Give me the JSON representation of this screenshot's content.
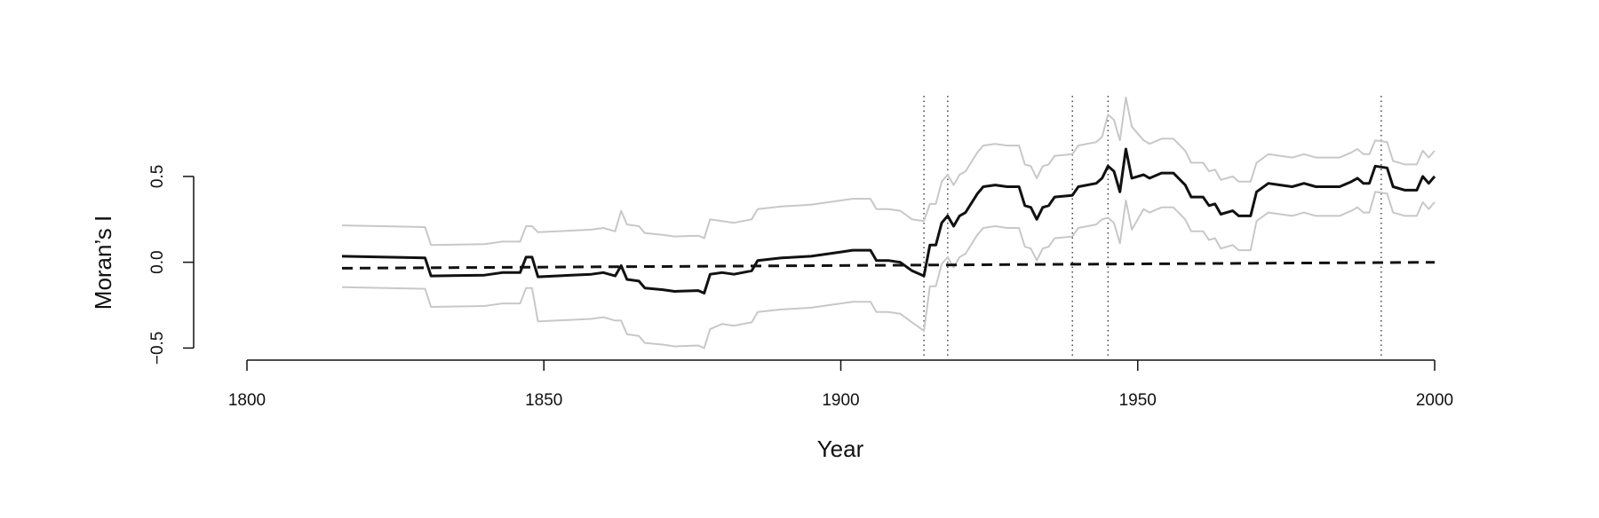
{
  "chart_data": {
    "type": "line",
    "x_label": "Year",
    "y_label": "Moran’s I",
    "xlim": [
      1800,
      2000
    ],
    "xticks": [
      1800,
      1850,
      1900,
      1950,
      2000
    ],
    "ylim": [
      -0.56,
      0.97
    ],
    "yticks": [
      {
        "value": -0.5,
        "label": "−0.5"
      },
      {
        "value": 0,
        "label": "0.0"
      },
      0.5
    ],
    "x": [
      1816,
      1830,
      1831,
      1840,
      1843,
      1846,
      1847,
      1848,
      1849,
      1858,
      1860,
      1862,
      1863,
      1864,
      1866,
      1867,
      1870,
      1872,
      1876,
      1877,
      1878,
      1880,
      1882,
      1885,
      1886,
      1890,
      1895,
      1900,
      1902,
      1905,
      1906,
      1908,
      1910,
      1912,
      1914,
      1915,
      1916,
      1917,
      1918,
      1919,
      1920,
      1921,
      1923,
      1924,
      1926,
      1928,
      1930,
      1931,
      1932,
      1933,
      1934,
      1935,
      1936,
      1939,
      1940,
      1943,
      1944,
      1945,
      1946,
      1947,
      1948,
      1949,
      1951,
      1952,
      1954,
      1956,
      1958,
      1959,
      1961,
      1962,
      1963,
      1964,
      1966,
      1967,
      1969,
      1970,
      1972,
      1974,
      1976,
      1978,
      1980,
      1984,
      1986,
      1987,
      1988,
      1989,
      1990,
      1992,
      1993,
      1995,
      1997,
      1998,
      1999,
      2000
    ],
    "series": [
      {
        "color": "#c8c8c8",
        "width": 2,
        "values": [
          0.215,
          0.205,
          0.1,
          0.105,
          0.12,
          0.12,
          0.21,
          0.21,
          0.175,
          0.19,
          0.2,
          0.18,
          0.3,
          0.22,
          0.21,
          0.17,
          0.16,
          0.15,
          0.155,
          0.14,
          0.25,
          0.24,
          0.23,
          0.25,
          0.31,
          0.325,
          0.335,
          0.36,
          0.37,
          0.37,
          0.31,
          0.31,
          0.3,
          0.25,
          0.24,
          0.34,
          0.34,
          0.47,
          0.51,
          0.45,
          0.51,
          0.53,
          0.64,
          0.68,
          0.69,
          0.68,
          0.68,
          0.57,
          0.56,
          0.49,
          0.56,
          0.57,
          0.62,
          0.63,
          0.68,
          0.7,
          0.73,
          0.86,
          0.83,
          0.71,
          0.96,
          0.79,
          0.71,
          0.69,
          0.72,
          0.72,
          0.65,
          0.58,
          0.58,
          0.53,
          0.54,
          0.48,
          0.5,
          0.47,
          0.47,
          0.58,
          0.63,
          0.62,
          0.61,
          0.63,
          0.61,
          0.61,
          0.64,
          0.66,
          0.63,
          0.63,
          0.71,
          0.7,
          0.59,
          0.57,
          0.57,
          0.65,
          0.61,
          0.65
        ]
      },
      {
        "color": "#c8c8c8",
        "width": 2,
        "values": [
          -0.145,
          -0.155,
          -0.26,
          -0.255,
          -0.24,
          -0.24,
          -0.15,
          -0.15,
          -0.345,
          -0.33,
          -0.32,
          -0.34,
          -0.34,
          -0.42,
          -0.43,
          -0.47,
          -0.48,
          -0.49,
          -0.485,
          -0.5,
          -0.39,
          -0.36,
          -0.37,
          -0.35,
          -0.29,
          -0.275,
          -0.265,
          -0.24,
          -0.23,
          -0.23,
          -0.29,
          -0.29,
          -0.3,
          -0.35,
          -0.4,
          -0.14,
          -0.14,
          -0.01,
          0.03,
          -0.03,
          0.03,
          0.05,
          0.16,
          0.2,
          0.21,
          0.2,
          0.2,
          0.09,
          0.08,
          0.01,
          0.08,
          0.09,
          0.14,
          0.15,
          0.2,
          0.22,
          0.25,
          0.26,
          0.23,
          0.11,
          0.36,
          0.19,
          0.31,
          0.29,
          0.32,
          0.32,
          0.25,
          0.18,
          0.18,
          0.13,
          0.14,
          0.08,
          0.1,
          0.07,
          0.07,
          0.24,
          0.29,
          0.28,
          0.27,
          0.29,
          0.27,
          0.27,
          0.3,
          0.32,
          0.29,
          0.29,
          0.41,
          0.4,
          0.29,
          0.27,
          0.27,
          0.35,
          0.31,
          0.35
        ]
      },
      {
        "color": "#111111",
        "width": 3,
        "values": [
          0.035,
          0.025,
          -0.08,
          -0.075,
          -0.06,
          -0.06,
          0.03,
          0.03,
          -0.085,
          -0.07,
          -0.06,
          -0.08,
          -0.02,
          -0.1,
          -0.11,
          -0.15,
          -0.16,
          -0.17,
          -0.165,
          -0.18,
          -0.07,
          -0.06,
          -0.07,
          -0.05,
          0.01,
          0.025,
          0.035,
          0.06,
          0.07,
          0.07,
          0.01,
          0.01,
          0,
          -0.05,
          -0.08,
          0.1,
          0.1,
          0.23,
          0.27,
          0.21,
          0.27,
          0.29,
          0.4,
          0.44,
          0.45,
          0.44,
          0.44,
          0.33,
          0.32,
          0.25,
          0.32,
          0.33,
          0.38,
          0.39,
          0.44,
          0.46,
          0.49,
          0.56,
          0.53,
          0.41,
          0.66,
          0.49,
          0.51,
          0.49,
          0.52,
          0.52,
          0.45,
          0.38,
          0.38,
          0.33,
          0.34,
          0.28,
          0.3,
          0.27,
          0.27,
          0.41,
          0.46,
          0.45,
          0.44,
          0.46,
          0.44,
          0.44,
          0.47,
          0.49,
          0.46,
          0.46,
          0.56,
          0.55,
          0.44,
          0.42,
          0.42,
          0.5,
          0.46,
          0.5
        ]
      }
    ],
    "reference": {
      "color": "#111111",
      "dashed": true,
      "x": [
        1816,
        2000
      ],
      "values": [
        -0.035,
        0
      ]
    },
    "vlines": [
      1914,
      1918,
      1939,
      1945,
      1991
    ]
  }
}
